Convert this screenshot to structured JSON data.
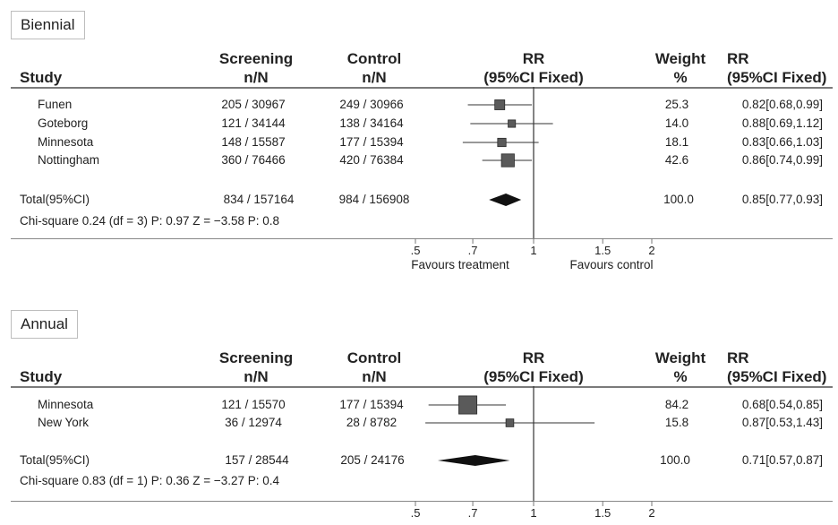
{
  "headers": {
    "study": "Study",
    "screening_line1": "Screening",
    "screening_line2": "n/N",
    "control_line1": "Control",
    "control_line2": "n/N",
    "rr_plot_line1": "RR",
    "rr_plot_line2": "(95%CI Fixed)",
    "weight_line1": "Weight",
    "weight_line2": "%",
    "rr_line1": "RR",
    "rr_line2": "(95%CI Fixed)"
  },
  "axis": {
    "ticks": [
      {
        "value": 0.5,
        "label": ".5"
      },
      {
        "value": 0.7,
        "label": ".7"
      },
      {
        "value": 1,
        "label": "1"
      },
      {
        "value": 1.5,
        "label": "1.5"
      },
      {
        "value": 2,
        "label": "2"
      }
    ],
    "favours_left": "Favours treatment",
    "favours_right": "Favours control"
  },
  "colors": {
    "line": "#333333",
    "box": "#5a5a5a",
    "rule": "#777777"
  },
  "chart_data": [
    {
      "type": "forest",
      "title": "Biennial",
      "scale": "log",
      "xlim": [
        0.5,
        2
      ],
      "studies": [
        {
          "study": "Funen",
          "screening": "205 / 30967",
          "control": "249 / 30966",
          "weight": "25.3",
          "rr_text": "0.82[0.68,0.99]",
          "rr": 0.82,
          "lo": 0.68,
          "hi": 0.99,
          "w": 25.3
        },
        {
          "study": "Goteborg",
          "screening": "121 / 34144",
          "control": "138 / 34164",
          "weight": "14.0",
          "rr_text": "0.88[0.69,1.12]",
          "rr": 0.88,
          "lo": 0.69,
          "hi": 1.12,
          "w": 14.0
        },
        {
          "study": "Minnesota",
          "screening": "148 / 15587",
          "control": "177 / 15394",
          "weight": "18.1",
          "rr_text": "0.83[0.66,1.03]",
          "rr": 0.83,
          "lo": 0.66,
          "hi": 1.03,
          "w": 18.1
        },
        {
          "study": "Nottingham",
          "screening": "360 / 76466",
          "control": "420 / 76384",
          "weight": "42.6",
          "rr_text": "0.86[0.74,0.99]",
          "rr": 0.86,
          "lo": 0.74,
          "hi": 0.99,
          "w": 42.6
        }
      ],
      "total": {
        "label": "Total(95%CI)",
        "screening": "834 / 157164",
        "control": "984 / 156908",
        "weight": "100.0",
        "rr_text": "0.85[0.77,0.93]",
        "rr": 0.85,
        "lo": 0.77,
        "hi": 0.93
      },
      "heterogeneity": "Chi-square 0.24 (df = 3) P: 0.97 Z = −3.58 P: 0.8"
    },
    {
      "type": "forest",
      "title": "Annual",
      "scale": "log",
      "xlim": [
        0.5,
        2
      ],
      "studies": [
        {
          "study": "Minnesota",
          "screening": "121 / 15570",
          "control": "177 / 15394",
          "weight": "84.2",
          "rr_text": "0.68[0.54,0.85]",
          "rr": 0.68,
          "lo": 0.54,
          "hi": 0.85,
          "w": 84.2
        },
        {
          "study": "New York",
          "screening": "36 / 12974",
          "control": "28 / 8782",
          "weight": "15.8",
          "rr_text": "0.87[0.53,1.43]",
          "rr": 0.87,
          "lo": 0.53,
          "hi": 1.43,
          "w": 15.8
        }
      ],
      "total": {
        "label": "Total(95%CI)",
        "screening": "157 / 28544",
        "control": "205 / 24176",
        "weight": "100.0",
        "rr_text": "0.71[0.57,0.87]",
        "rr": 0.71,
        "lo": 0.57,
        "hi": 0.87
      },
      "heterogeneity": "Chi-square 0.83 (df = 1) P: 0.36 Z = −3.27 P: 0.4"
    }
  ]
}
